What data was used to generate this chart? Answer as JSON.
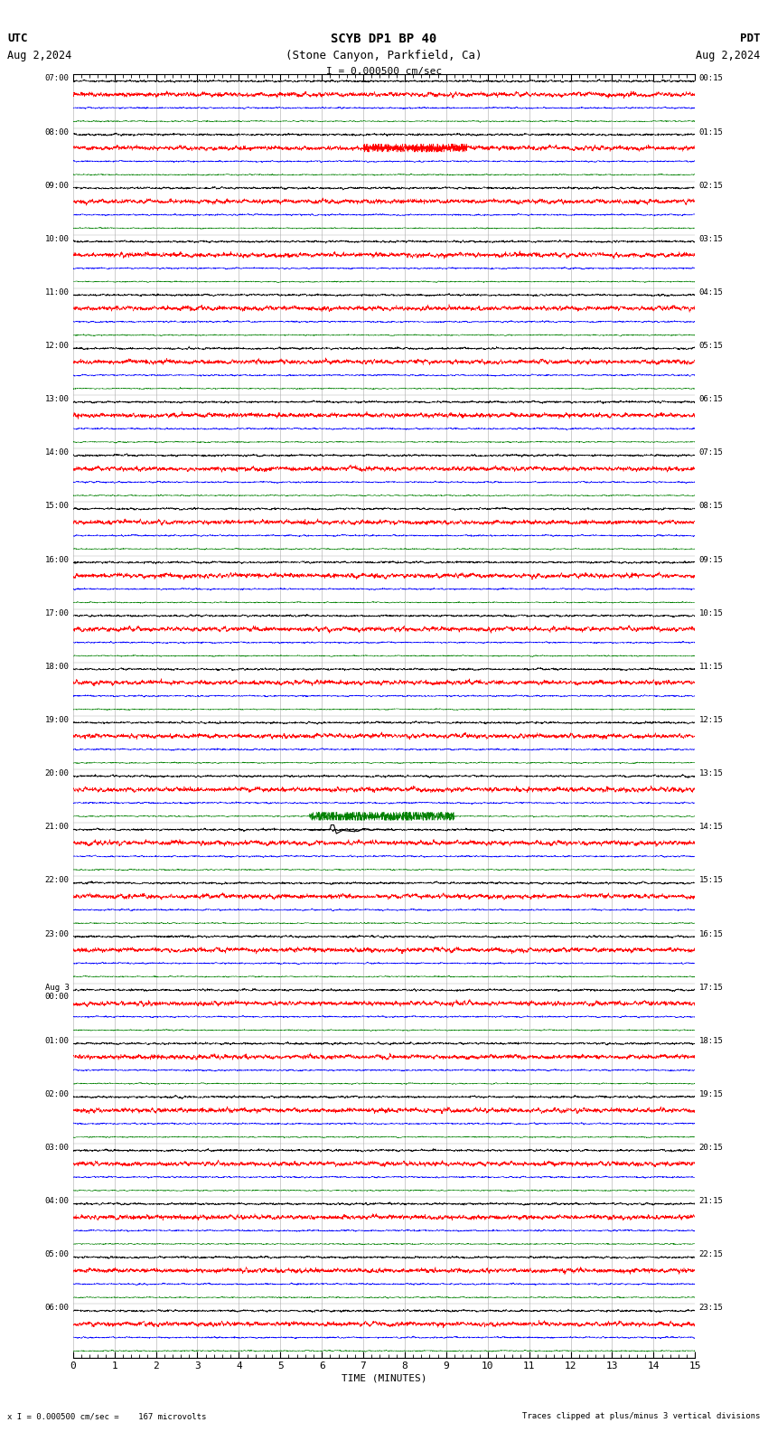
{
  "title_line1": "SCYB DP1 BP 40",
  "title_line2": "(Stone Canyon, Parkfield, Ca)",
  "title_scale": "I = 0.000500 cm/sec",
  "utc_label": "UTC",
  "pdt_label": "PDT",
  "utc_date": "Aug 2,2024",
  "pdt_date": "Aug 2,2024",
  "xlabel": "TIME (MINUTES)",
  "footer_left": "x I = 0.000500 cm/sec =    167 microvolts",
  "footer_right": "Traces clipped at plus/minus 3 vertical divisions",
  "utc_times": [
    "07:00",
    "08:00",
    "09:00",
    "10:00",
    "11:00",
    "12:00",
    "13:00",
    "14:00",
    "15:00",
    "16:00",
    "17:00",
    "18:00",
    "19:00",
    "20:00",
    "21:00",
    "22:00",
    "23:00",
    "Aug 3\n00:00",
    "01:00",
    "02:00",
    "03:00",
    "04:00",
    "05:00",
    "06:00"
  ],
  "pdt_times": [
    "00:15",
    "01:15",
    "02:15",
    "03:15",
    "04:15",
    "05:15",
    "06:15",
    "07:15",
    "08:15",
    "09:15",
    "10:15",
    "11:15",
    "12:15",
    "13:15",
    "14:15",
    "15:15",
    "16:15",
    "17:15",
    "18:15",
    "19:15",
    "20:15",
    "21:15",
    "22:15",
    "23:15"
  ],
  "trace_colors": [
    "black",
    "red",
    "blue",
    "green"
  ],
  "num_hours": 24,
  "traces_per_hour": 4,
  "xmin": 0,
  "xmax": 15,
  "bg_color": "white",
  "grid_color": "#aaaaaa",
  "trace_lw": 0.35,
  "font_name": "monospace"
}
